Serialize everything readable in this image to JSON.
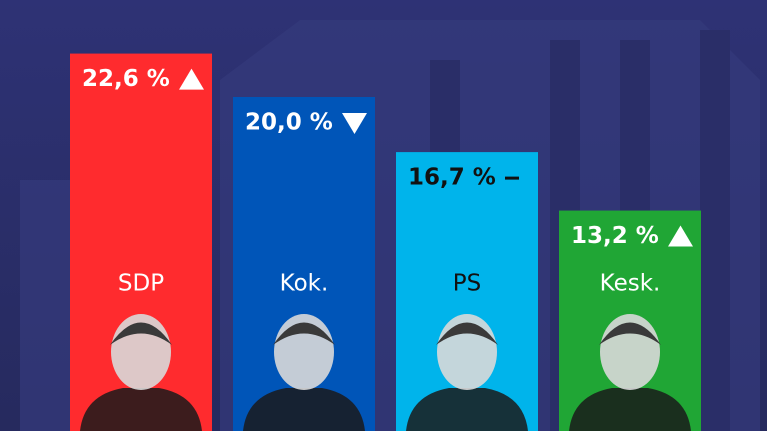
{
  "chart_data": {
    "type": "bar",
    "categories": [
      "SDP",
      "Kok.",
      "PS",
      "Kesk."
    ],
    "values": [
      22.6,
      20.0,
      16.7,
      13.2
    ],
    "value_labels": [
      "22,6 %",
      "20,0 %",
      "16,7 %",
      "13,2 %"
    ],
    "colors": [
      "#ff2b2e",
      "#0055b8",
      "#00b4eb",
      "#20a635"
    ],
    "text_colors": [
      "#ffffff",
      "#ffffff",
      "#111111",
      "#ffffff"
    ],
    "trends": [
      "up",
      "down",
      "flat",
      "up"
    ]
  }
}
